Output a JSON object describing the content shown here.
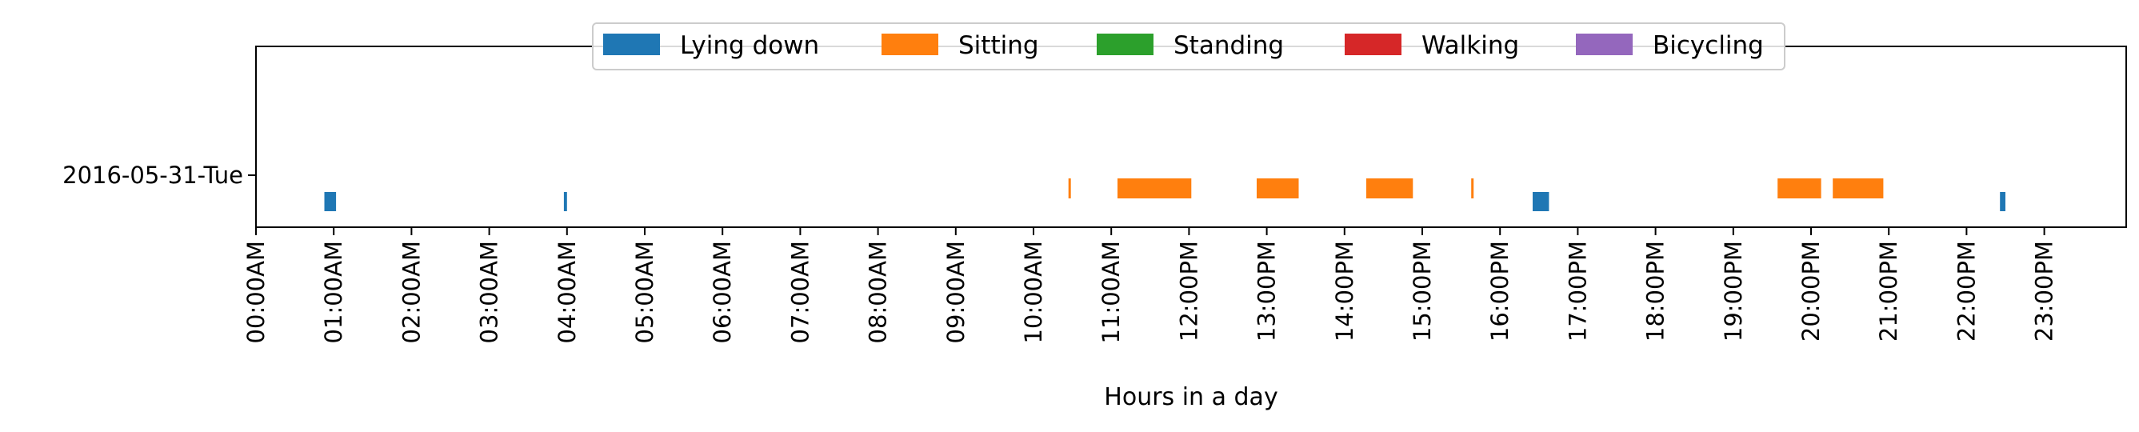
{
  "chart_data": {
    "type": "timeline",
    "title": "",
    "xlabel": "Hours in a day",
    "ylabel": "",
    "xlim": [
      0,
      24
    ],
    "grid": false,
    "legend_placement": "top-center",
    "legend": [
      {
        "name": "Lying down",
        "color": "#1f77b4"
      },
      {
        "name": "Sitting",
        "color": "#ff7f0e"
      },
      {
        "name": "Standing",
        "color": "#2ca02c"
      },
      {
        "name": "Walking",
        "color": "#d62728"
      },
      {
        "name": "Bicycling",
        "color": "#9467bd"
      }
    ],
    "y_categories": [
      "2016-05-31-Tue"
    ],
    "x_ticks": [
      {
        "value": 0,
        "label": "00:00AM"
      },
      {
        "value": 1,
        "label": "01:00AM"
      },
      {
        "value": 2,
        "label": "02:00AM"
      },
      {
        "value": 3,
        "label": "03:00AM"
      },
      {
        "value": 4,
        "label": "04:00AM"
      },
      {
        "value": 5,
        "label": "05:00AM"
      },
      {
        "value": 6,
        "label": "06:00AM"
      },
      {
        "value": 7,
        "label": "07:00AM"
      },
      {
        "value": 8,
        "label": "08:00AM"
      },
      {
        "value": 9,
        "label": "09:00AM"
      },
      {
        "value": 10,
        "label": "10:00AM"
      },
      {
        "value": 11,
        "label": "11:00AM"
      },
      {
        "value": 12,
        "label": "12:00PM"
      },
      {
        "value": 13,
        "label": "13:00PM"
      },
      {
        "value": 14,
        "label": "14:00PM"
      },
      {
        "value": 15,
        "label": "15:00PM"
      },
      {
        "value": 16,
        "label": "16:00PM"
      },
      {
        "value": 17,
        "label": "17:00PM"
      },
      {
        "value": 18,
        "label": "18:00PM"
      },
      {
        "value": 19,
        "label": "19:00PM"
      },
      {
        "value": 20,
        "label": "20:00PM"
      },
      {
        "value": 21,
        "label": "21:00PM"
      },
      {
        "value": 22,
        "label": "22:00PM"
      },
      {
        "value": 23,
        "label": "23:00PM"
      }
    ],
    "segments": [
      {
        "day": "2016-05-31-Tue",
        "activity": "Lying down",
        "start": 0.88,
        "end": 1.03
      },
      {
        "day": "2016-05-31-Tue",
        "activity": "Lying down",
        "start": 3.96,
        "end": 4.0
      },
      {
        "day": "2016-05-31-Tue",
        "activity": "Sitting",
        "start": 10.45,
        "end": 10.48
      },
      {
        "day": "2016-05-31-Tue",
        "activity": "Sitting",
        "start": 11.08,
        "end": 12.03
      },
      {
        "day": "2016-05-31-Tue",
        "activity": "Sitting",
        "start": 12.87,
        "end": 13.41
      },
      {
        "day": "2016-05-31-Tue",
        "activity": "Sitting",
        "start": 14.28,
        "end": 14.88
      },
      {
        "day": "2016-05-31-Tue",
        "activity": "Sitting",
        "start": 15.63,
        "end": 15.66
      },
      {
        "day": "2016-05-31-Tue",
        "activity": "Lying down",
        "start": 16.42,
        "end": 16.63
      },
      {
        "day": "2016-05-31-Tue",
        "activity": "Sitting",
        "start": 19.57,
        "end": 20.13
      },
      {
        "day": "2016-05-31-Tue",
        "activity": "Sitting",
        "start": 20.28,
        "end": 20.93
      },
      {
        "day": "2016-05-31-Tue",
        "activity": "Lying down",
        "start": 22.43,
        "end": 22.5
      }
    ]
  }
}
